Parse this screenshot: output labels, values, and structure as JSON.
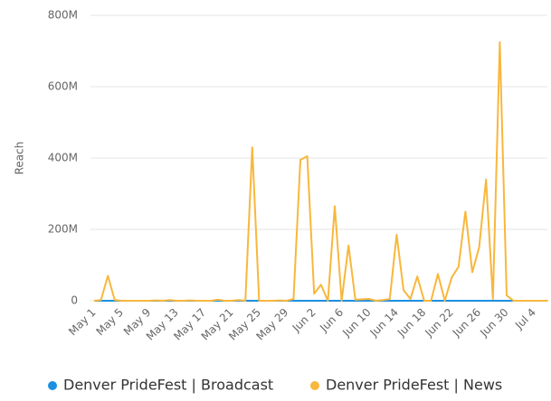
{
  "chart_data": {
    "type": "line",
    "y_label": "Reach",
    "categories": [
      "May 1",
      null,
      null,
      null,
      "May 5",
      null,
      null,
      null,
      "May 9",
      null,
      null,
      null,
      "May 13",
      null,
      null,
      null,
      "May 17",
      null,
      null,
      null,
      "May 21",
      null,
      null,
      null,
      "May 25",
      null,
      null,
      null,
      "May 29",
      null,
      null,
      null,
      "Jun 2",
      null,
      null,
      null,
      "Jun 6",
      null,
      null,
      null,
      "Jun 10",
      null,
      null,
      null,
      "Jun 14",
      null,
      null,
      null,
      "Jun 18",
      null,
      null,
      null,
      "Jun 22",
      null,
      null,
      null,
      "Jun 26",
      null,
      null,
      null,
      "Jun 30",
      null,
      null,
      null,
      "Jul 4",
      null,
      null
    ],
    "series": [
      {
        "name": "Denver PrideFest | Broadcast",
        "color": "#1b8fe0",
        "values": [
          0,
          0,
          0,
          0,
          0,
          0,
          0,
          0,
          0,
          0,
          0,
          0,
          0,
          0,
          0,
          0,
          0,
          0,
          0,
          0,
          0,
          0,
          0,
          0,
          0,
          0,
          0,
          0,
          0,
          0,
          0,
          0,
          0,
          0,
          0,
          0,
          0,
          0,
          0,
          0,
          0,
          0,
          0,
          0,
          0,
          0,
          0,
          0,
          0,
          0,
          0,
          0,
          0,
          0,
          0,
          0,
          0,
          0,
          0,
          0,
          0,
          0,
          0,
          0,
          0,
          0,
          0
        ]
      },
      {
        "name": "Denver PrideFest | News",
        "color": "#f8b73c",
        "values": [
          0,
          2000000,
          70000000,
          2000000,
          0,
          0,
          0,
          0,
          0,
          1000000,
          0,
          2000000,
          0,
          0,
          1000000,
          0,
          0,
          0,
          3000000,
          0,
          0,
          2000000,
          0,
          430000000,
          0,
          0,
          0,
          1000000,
          0,
          5000000,
          395000000,
          405000000,
          20000000,
          45000000,
          0,
          265000000,
          0,
          155000000,
          3000000,
          4000000,
          5000000,
          0,
          2000000,
          5000000,
          185000000,
          30000000,
          5000000,
          68000000,
          0,
          0,
          75000000,
          0,
          65000000,
          95000000,
          250000000,
          80000000,
          150000000,
          340000000,
          5000000,
          725000000,
          15000000,
          0,
          0,
          0,
          0,
          0,
          0
        ]
      }
    ],
    "ylim": [
      0,
      800000000
    ],
    "yticks": [
      0,
      {
        "value": 200000000,
        "label": "200M"
      },
      {
        "value": 400000000,
        "label": "400M"
      },
      {
        "value": 600000000,
        "label": "600M"
      },
      {
        "value": 800000000,
        "label": "800M"
      }
    ],
    "grid": true,
    "legend": "bottom"
  }
}
